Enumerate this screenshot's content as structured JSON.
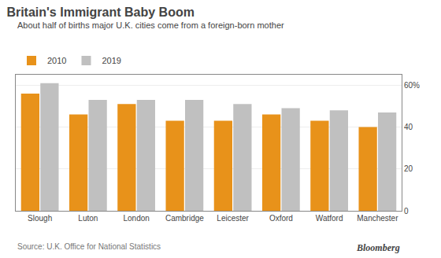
{
  "chart_data": {
    "type": "bar",
    "title": "Britain's Immigrant Baby Boom",
    "subtitle": "About half of births major U.K. cities come from a foreign-born mother",
    "source": "Source: U.K. Office for National Statistics",
    "annotations": [
      "Bloomberg"
    ],
    "categories": [
      "Slough",
      "Luton",
      "London",
      "Cambridge",
      "Leicester",
      "Oxford",
      "Watford",
      "Manchester"
    ],
    "series": [
      {
        "name": "2010",
        "color": "#E8921A",
        "values": [
          56,
          46,
          51,
          43,
          43,
          46,
          43,
          40
        ]
      },
      {
        "name": "2019",
        "color": "#C0C0C0",
        "values": [
          61,
          53,
          53,
          53,
          51,
          49,
          48,
          47
        ]
      }
    ],
    "ylim": [
      0,
      65
    ],
    "yticks": [
      0,
      20,
      40,
      {
        "value": 60,
        "label": "60%"
      }
    ],
    "grid": true,
    "legend": "top"
  }
}
